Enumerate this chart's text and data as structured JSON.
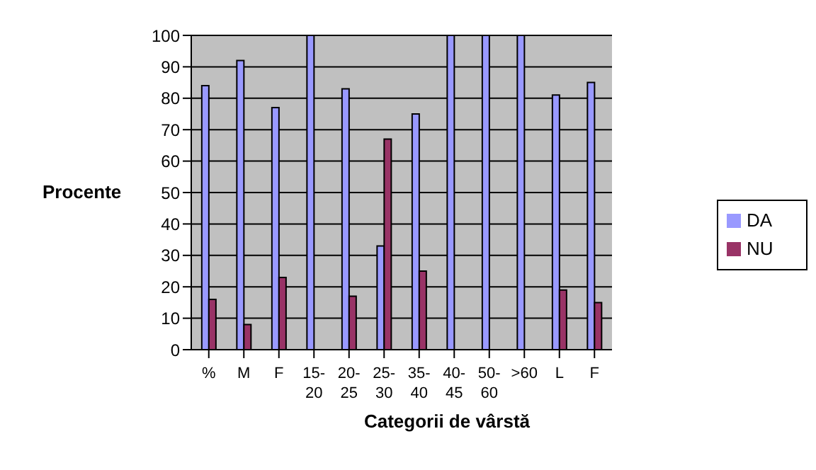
{
  "chart_data": {
    "type": "bar",
    "xlabel": "Categorii de vârstă",
    "ylabel": "Procente",
    "categories": [
      "%",
      "M",
      "F",
      "15-20",
      "20-25",
      "25-30",
      "35-40",
      "40-45",
      "50-60",
      ">60",
      "L",
      "F"
    ],
    "series": [
      {
        "name": "DA",
        "color": "#9999ff",
        "values": [
          84,
          92,
          77,
          100,
          83,
          33,
          75,
          100,
          100,
          100,
          81,
          85
        ]
      },
      {
        "name": "NU",
        "color": "#993366",
        "values": [
          16,
          8,
          23,
          0,
          17,
          67,
          25,
          0,
          0,
          0,
          19,
          15
        ]
      }
    ],
    "ylim": [
      0,
      100
    ],
    "yticks": [
      0,
      10,
      20,
      30,
      40,
      50,
      60,
      70,
      80,
      90,
      100
    ],
    "grid": "y",
    "legend": "right"
  }
}
